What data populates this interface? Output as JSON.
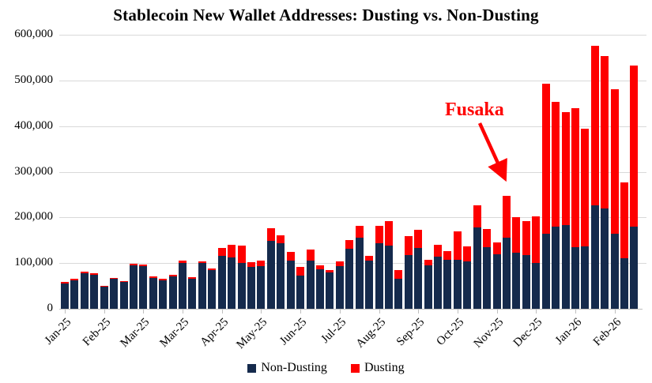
{
  "chart": {
    "title": "Stablecoin New Wallet Addresses: Dusting vs. Non-Dusting",
    "annotation": {
      "label": "Fusaka",
      "color": "#fe0000"
    },
    "legend": [
      {
        "label": "Non-Dusting",
        "color": "#152a4c"
      },
      {
        "label": "Dusting",
        "color": "#fe0000"
      }
    ],
    "colors": {
      "non_dusting": "#152a4c",
      "dusting": "#fe0000",
      "gridline": "#d9d9d9",
      "axis": "#bfbfbf",
      "text": "#000000"
    }
  },
  "chart_data": {
    "type": "bar",
    "stacked": true,
    "title": "Stablecoin New Wallet Addresses: Dusting vs. Non-Dusting",
    "xlabel": "",
    "ylabel": "",
    "ylim": [
      0,
      600000
    ],
    "y_ticks": [
      0,
      100000,
      200000,
      300000,
      400000,
      500000,
      600000
    ],
    "grid": "horizontal",
    "legend_position": "bottom",
    "x_tick_labels": [
      "Jan-25",
      "Feb-25",
      "Mar-25",
      "Mar-25",
      "Apr-25",
      "May-25",
      "Jun-25",
      "Jul-25",
      "Aug-25",
      "Sep-25",
      "Oct-25",
      "Nov-25",
      "Dec-25",
      "Jan-26",
      "Feb-26"
    ],
    "x_label_every_n_bars": 4,
    "bar_count": 59,
    "series": [
      {
        "name": "Non-Dusting",
        "color": "#152a4c",
        "values": [
          56000,
          62000,
          78000,
          74000,
          48000,
          65000,
          58000,
          95000,
          94000,
          68000,
          62000,
          71000,
          100000,
          66000,
          100000,
          85000,
          116000,
          112000,
          100000,
          92000,
          94000,
          149000,
          143000,
          106000,
          73000,
          105000,
          87000,
          80000,
          94000,
          131000,
          156000,
          106000,
          144000,
          139000,
          65000,
          117000,
          133000,
          95000,
          114000,
          108000,
          107000,
          104000,
          178000,
          135000,
          120000,
          155000,
          123000,
          117000,
          100000,
          165000,
          180000,
          184000,
          135000,
          136000,
          226000,
          220000,
          165000,
          110000,
          179000
        ]
      },
      {
        "name": "Dusting",
        "color": "#fe0000",
        "values": [
          3000,
          3000,
          3000,
          3000,
          3000,
          3000,
          3000,
          3000,
          3000,
          3000,
          3000,
          3000,
          5000,
          3000,
          3000,
          4000,
          17000,
          28000,
          38000,
          10000,
          12000,
          27000,
          17000,
          18000,
          18000,
          24000,
          8000,
          4000,
          10000,
          20000,
          25000,
          10000,
          37000,
          53000,
          20000,
          42000,
          40000,
          12000,
          26000,
          19000,
          63000,
          33000,
          48000,
          40000,
          25000,
          92000,
          77000,
          75000,
          103000,
          327000,
          273000,
          246000,
          304000,
          259000,
          349000,
          334000,
          315000,
          166000,
          354000
        ]
      }
    ],
    "annotation": {
      "text": "Fusaka",
      "points_to_bar_index": 45
    }
  }
}
